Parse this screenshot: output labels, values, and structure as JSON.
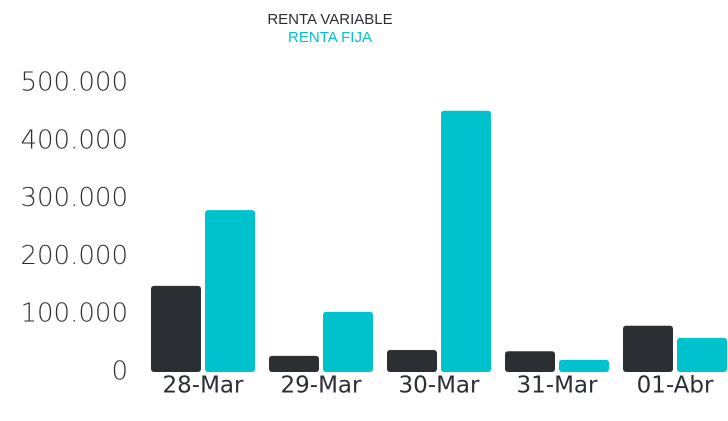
{
  "chart_data": {
    "type": "bar",
    "categories": [
      "28-Mar",
      "29-Mar",
      "30-Mar",
      "31-Mar",
      "01-Abr"
    ],
    "series": [
      {
        "name": "RENTA VARIABLE",
        "color": "#2b2e33",
        "values": [
          149000,
          28000,
          38000,
          36000,
          80000
        ]
      },
      {
        "name": "RENTA FIJA",
        "color": "#00c2cc",
        "values": [
          280000,
          104000,
          452000,
          21000,
          59000
        ]
      }
    ],
    "ylim": [
      0,
      500000
    ],
    "yticks": [
      0,
      {
        "value": 100000,
        "label": "100.000"
      },
      {
        "value": 200000,
        "label": "200.000"
      },
      {
        "value": 300000,
        "label": "300.000"
      },
      {
        "value": 400000,
        "label": "400.000"
      },
      {
        "value": 500000,
        "label": "500.000"
      }
    ],
    "grid": false,
    "legend": "top"
  }
}
